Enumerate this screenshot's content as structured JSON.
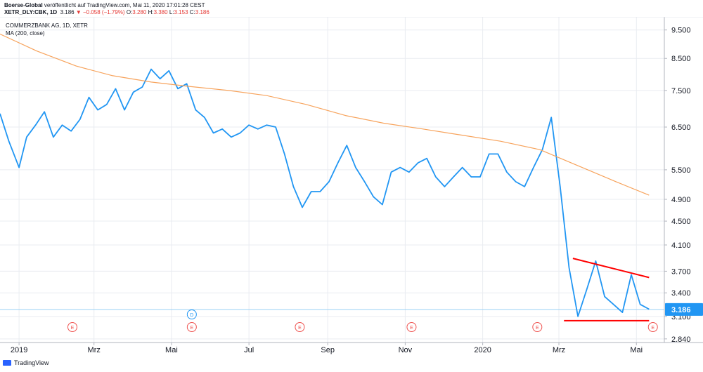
{
  "header": {
    "line1_user": "Boerse-Global",
    "line1_rest": " veröffentlicht auf TradingView.com, Mai 11, 2020 17:01:28 CEST",
    "symbol": "XETR_DLY:CBK, 1D",
    "last": "3.186",
    "change": "−0.058 (−1.79%)",
    "o_label": "O:",
    "o_val": "3.280",
    "h_label": "H:",
    "h_val": "3.380",
    "l_label": "L:",
    "l_val": "3.153",
    "c_label": "C:",
    "c_val": "3.186"
  },
  "footer": {
    "brand": "TradingView"
  },
  "colors": {
    "price": "#2196f3",
    "ma": "#f7a35c",
    "trend": "#ff0000",
    "grid": "#e9ecf1"
  },
  "chart_data": {
    "type": "line",
    "title": "COMMERZBANK AG, 1D, XETR",
    "subtitle": "MA (200, close)",
    "last_price_label": "3.186",
    "y_scale": "log",
    "ylim": [
      2.8,
      10.0
    ],
    "y_ticks": [
      9.5,
      8.5,
      7.5,
      6.5,
      5.5,
      4.9,
      4.5,
      4.1,
      3.7,
      3.4,
      3.1,
      2.84
    ],
    "y_tick_labels": [
      "9.500",
      "8.500",
      "7.500",
      "6.500",
      "5.500",
      "4.900",
      "4.500",
      "4.100",
      "3.700",
      "3.400",
      "3.100",
      "2.840"
    ],
    "x_range": [
      "2018-12-17",
      "2020-05-23"
    ],
    "x_ticks": [
      {
        "date": "2019-01-01",
        "label": "2019"
      },
      {
        "date": "2019-03-01",
        "label": "Mrz"
      },
      {
        "date": "2019-05-01",
        "label": "Mai"
      },
      {
        "date": "2019-07-01",
        "label": "Jul"
      },
      {
        "date": "2019-09-01",
        "label": "Sep"
      },
      {
        "date": "2019-11-01",
        "label": "Nov"
      },
      {
        "date": "2020-01-01",
        "label": "2020"
      },
      {
        "date": "2020-03-01",
        "label": "Mrz"
      },
      {
        "date": "2020-05-01",
        "label": "Mai"
      }
    ],
    "series": [
      {
        "kind": "price",
        "x": [
          "2018-12-17",
          "2018-12-24",
          "2019-01-01",
          "2019-01-07",
          "2019-01-14",
          "2019-01-21",
          "2019-01-28",
          "2019-02-04",
          "2019-02-11",
          "2019-02-18",
          "2019-02-25",
          "2019-03-04",
          "2019-03-11",
          "2019-03-18",
          "2019-03-25",
          "2019-04-01",
          "2019-04-08",
          "2019-04-15",
          "2019-04-22",
          "2019-04-29",
          "2019-05-06",
          "2019-05-13",
          "2019-05-20",
          "2019-05-27",
          "2019-06-03",
          "2019-06-10",
          "2019-06-17",
          "2019-06-24",
          "2019-07-01",
          "2019-07-08",
          "2019-07-15",
          "2019-07-22",
          "2019-07-29",
          "2019-08-05",
          "2019-08-12",
          "2019-08-19",
          "2019-08-26",
          "2019-09-02",
          "2019-09-09",
          "2019-09-16",
          "2019-09-23",
          "2019-09-30",
          "2019-10-07",
          "2019-10-14",
          "2019-10-21",
          "2019-10-28",
          "2019-11-04",
          "2019-11-11",
          "2019-11-18",
          "2019-11-25",
          "2019-12-02",
          "2019-12-09",
          "2019-12-16",
          "2019-12-23",
          "2019-12-30",
          "2020-01-06",
          "2020-01-13",
          "2020-01-20",
          "2020-01-27",
          "2020-02-03",
          "2020-02-10",
          "2020-02-17",
          "2020-02-24",
          "2020-03-02",
          "2020-03-09",
          "2020-03-16",
          "2020-03-23",
          "2020-03-30",
          "2020-04-06",
          "2020-04-13",
          "2020-04-20",
          "2020-04-27",
          "2020-05-04",
          "2020-05-11"
        ],
        "y": [
          6.85,
          6.15,
          5.55,
          6.25,
          6.55,
          6.9,
          6.25,
          6.55,
          6.4,
          6.7,
          7.3,
          6.95,
          7.1,
          7.55,
          6.95,
          7.45,
          7.6,
          8.15,
          7.85,
          8.1,
          7.55,
          7.7,
          6.95,
          6.75,
          6.35,
          6.45,
          6.25,
          6.35,
          6.55,
          6.45,
          6.55,
          6.5,
          5.85,
          5.15,
          4.75,
          5.05,
          5.05,
          5.25,
          5.65,
          6.05,
          5.55,
          5.25,
          4.95,
          4.8,
          5.45,
          5.55,
          5.45,
          5.65,
          5.75,
          5.35,
          5.15,
          5.35,
          5.55,
          5.35,
          5.35,
          5.85,
          5.85,
          5.45,
          5.25,
          5.15,
          5.55,
          5.95,
          6.75,
          5.15,
          3.75,
          3.1,
          3.45,
          3.85,
          3.35,
          3.25,
          3.15,
          3.65,
          3.25,
          3.19
        ]
      },
      {
        "kind": "ma",
        "x": [
          "2018-12-17",
          "2019-01-15",
          "2019-02-15",
          "2019-03-15",
          "2019-04-15",
          "2019-05-15",
          "2019-06-15",
          "2019-07-15",
          "2019-08-15",
          "2019-09-15",
          "2019-10-15",
          "2019-11-15",
          "2019-12-15",
          "2020-01-15",
          "2020-02-15",
          "2020-03-15",
          "2020-04-15",
          "2020-05-11"
        ],
        "y": [
          9.35,
          8.75,
          8.25,
          7.95,
          7.75,
          7.62,
          7.5,
          7.35,
          7.1,
          6.8,
          6.6,
          6.45,
          6.3,
          6.15,
          5.95,
          5.6,
          5.25,
          4.98
        ]
      }
    ],
    "trendlines": [
      {
        "from": [
          "2020-03-12",
          3.89
        ],
        "to": [
          "2020-05-11",
          3.61
        ]
      },
      {
        "from": [
          "2020-03-05",
          3.05
        ],
        "to": [
          "2020-05-11",
          3.05
        ]
      }
    ],
    "price_line": 3.186,
    "event_markers": [
      {
        "date": "2019-02-12",
        "label": "E"
      },
      {
        "date": "2019-05-17",
        "label": "D"
      },
      {
        "date": "2019-05-17",
        "label": "E"
      },
      {
        "date": "2019-08-10",
        "label": "E"
      },
      {
        "date": "2019-11-06",
        "label": "E"
      },
      {
        "date": "2020-02-13",
        "label": "E"
      },
      {
        "date": "2020-05-14",
        "label": "E"
      }
    ]
  }
}
